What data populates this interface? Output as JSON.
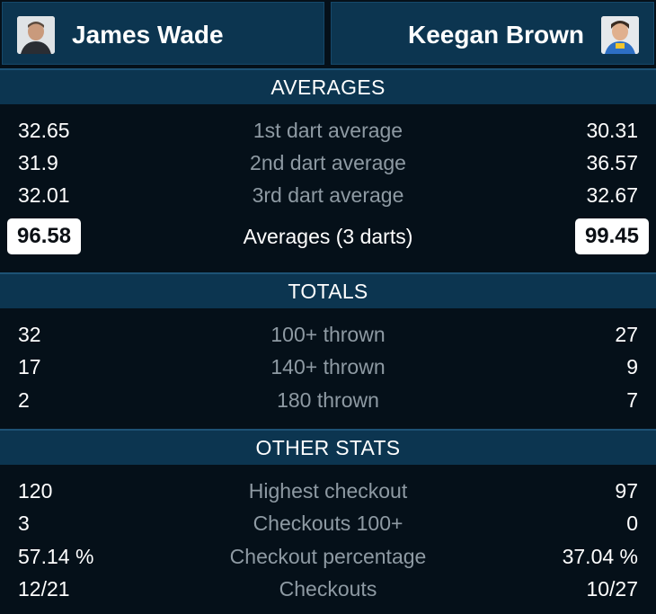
{
  "players": {
    "left": {
      "name": "James Wade"
    },
    "right": {
      "name": "Keegan Brown"
    }
  },
  "sections": {
    "averages": {
      "title": "AVERAGES",
      "rows": [
        {
          "label": "1st dart average",
          "left": "32.65",
          "right": "30.31"
        },
        {
          "label": "2nd dart average",
          "left": "31.9",
          "right": "36.57"
        },
        {
          "label": "3rd dart average",
          "left": "32.01",
          "right": "32.67"
        }
      ],
      "main": {
        "label": "Averages (3 darts)",
        "left": "96.58",
        "right": "99.45"
      }
    },
    "totals": {
      "title": "TOTALS",
      "rows": [
        {
          "label": "100+ thrown",
          "left": "32",
          "right": "27"
        },
        {
          "label": "140+ thrown",
          "left": "17",
          "right": "9"
        },
        {
          "label": "180 thrown",
          "left": "2",
          "right": "7"
        }
      ]
    },
    "other": {
      "title": "OTHER STATS",
      "rows": [
        {
          "label": "Highest checkout",
          "left": "120",
          "right": "97"
        },
        {
          "label": "Checkouts 100+",
          "left": "3",
          "right": "0"
        },
        {
          "label": "Checkout percentage",
          "left": "57.14 %",
          "right": "37.04 %"
        },
        {
          "label": "Checkouts",
          "left": "12/21",
          "right": "10/27"
        }
      ]
    }
  },
  "colors": {
    "background": "#051019",
    "header": "#0c3550",
    "label_muted": "#8e9aa3",
    "highlight_pill": "#ffffff"
  }
}
